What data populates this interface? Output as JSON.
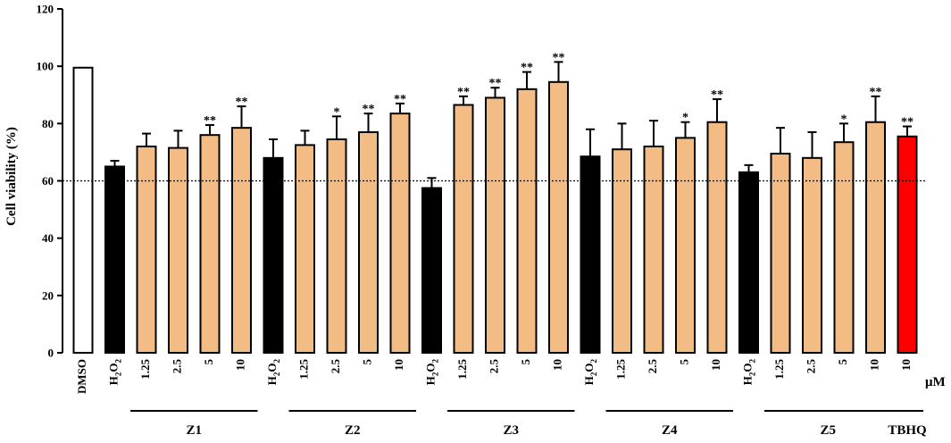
{
  "chart_data": {
    "type": "bar",
    "ylabel": "Cell viability (%)",
    "ylim": [
      0,
      120
    ],
    "yticks": [
      0,
      20,
      40,
      60,
      80,
      100,
      120
    ],
    "unit_label": "μM",
    "reference_line": 60,
    "categories": [
      "DMSO",
      "H2O2",
      "1.25",
      "2.5",
      "5",
      "10",
      "H2O2",
      "1.25",
      "2.5",
      "5",
      "10",
      "H2O2",
      "1.25",
      "2.5",
      "5",
      "10",
      "H2O2",
      "1.25",
      "2.5",
      "5",
      "10",
      "H2O2",
      "1.25",
      "2.5",
      "5",
      "10",
      "10"
    ],
    "values": [
      99.5,
      65,
      72,
      71.5,
      76,
      78.5,
      68,
      72.5,
      74.5,
      77,
      83.5,
      57.5,
      86.5,
      89,
      92,
      94.5,
      68.5,
      71,
      72,
      75,
      80.5,
      63,
      69.5,
      68,
      73.5,
      80.5,
      75.5
    ],
    "errors": [
      0,
      2,
      4.5,
      6,
      3.5,
      7.5,
      6.5,
      5,
      8,
      6.5,
      3.5,
      3.5,
      3,
      3.5,
      6,
      7,
      9.5,
      9,
      9,
      5.5,
      8,
      2.5,
      9,
      9,
      6.5,
      9,
      3.5
    ],
    "significance": [
      "",
      "",
      "",
      "",
      "**",
      "**",
      "",
      "",
      "*",
      "**",
      "**",
      "",
      "**",
      "**",
      "**",
      "**",
      "",
      "",
      "",
      "*",
      "**",
      "",
      "",
      "",
      "*",
      "**",
      "**"
    ],
    "bar_colors": {
      "DMSO": "#ffffff",
      "H2O2": "#000000",
      "compound": "#f2bc84",
      "TBHQ": "#ff0000"
    },
    "bar_kinds": [
      "DMSO",
      "H2O2",
      "compound",
      "compound",
      "compound",
      "compound",
      "H2O2",
      "compound",
      "compound",
      "compound",
      "compound",
      "H2O2",
      "compound",
      "compound",
      "compound",
      "compound",
      "H2O2",
      "compound",
      "compound",
      "compound",
      "compound",
      "H2O2",
      "compound",
      "compound",
      "compound",
      "compound",
      "TBHQ"
    ],
    "groups": [
      {
        "label": "Z1",
        "bars": [
          2,
          5
        ]
      },
      {
        "label": "Z2",
        "bars": [
          7,
          10
        ]
      },
      {
        "label": "Z3",
        "bars": [
          12,
          15
        ]
      },
      {
        "label": "Z4",
        "bars": [
          17,
          20
        ]
      },
      {
        "label": "Z5",
        "bars": [
          22,
          25
        ]
      },
      {
        "label": "TBHQ",
        "bars": [
          26,
          26
        ]
      }
    ]
  }
}
